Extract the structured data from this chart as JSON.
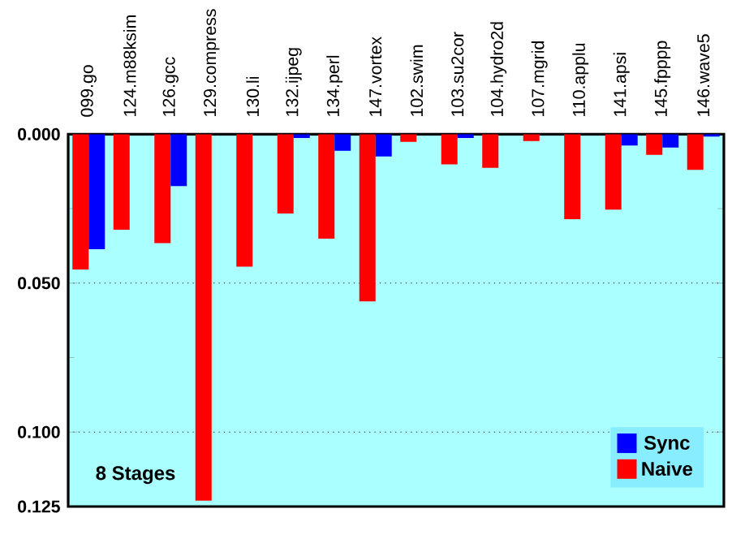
{
  "chart_data": {
    "type": "bar",
    "categories": [
      "099.go",
      "124.m88ksim",
      "126.gcc",
      "129.compress",
      "130.li",
      "132.ijpeg",
      "134.perl",
      "147.vortex",
      "102.swim",
      "103.su2cor",
      "104.hydro2d",
      "107.mgrid",
      "110.applu",
      "141.apsi",
      "145.fpppp",
      "146.wave5"
    ],
    "series": [
      {
        "name": "Naive",
        "color": "#ff0000",
        "values": [
          0.0454,
          0.0321,
          0.0366,
          0.123,
          0.0445,
          0.0266,
          0.0351,
          0.0561,
          0.0026,
          0.0101,
          0.0113,
          0.0023,
          0.0285,
          0.0253,
          0.0069,
          0.012
        ]
      },
      {
        "name": "Sync",
        "color": "#0000ff",
        "values": [
          0.0386,
          0,
          0.0174,
          0,
          0,
          0.0013,
          0.0056,
          0.0075,
          0,
          0.0013,
          0,
          0,
          0,
          0.0038,
          0.0045,
          0.0008
        ]
      }
    ],
    "ylim": [
      0.125,
      0
    ],
    "yticks": [
      {
        "value": 0,
        "label": "0.000"
      },
      {
        "value": 0.025,
        "label": null
      },
      {
        "value": 0.05,
        "label": "0.050"
      },
      {
        "value": 0.075,
        "label": null
      },
      {
        "value": 0.1,
        "label": "0.100"
      },
      {
        "value": 0.125,
        "label": "0.125"
      }
    ],
    "grid": "y",
    "legend": "bottom right",
    "annotations": [
      "8 Stages"
    ]
  }
}
